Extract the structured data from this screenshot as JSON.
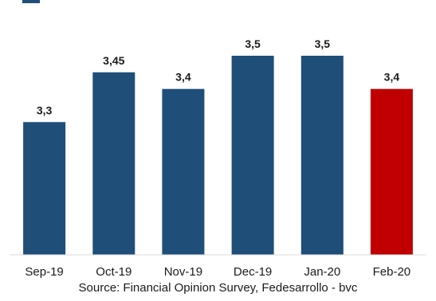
{
  "chart_data": {
    "type": "bar",
    "categories": [
      "Sep-19",
      "Oct-19",
      "Nov-19",
      "Dec-19",
      "Jan-20",
      "Feb-20"
    ],
    "values": [
      3.3,
      3.45,
      3.4,
      3.5,
      3.5,
      3.4
    ],
    "data_labels": [
      "3,3",
      "3,45",
      "3,4",
      "3,5",
      "3,5",
      "3,4"
    ],
    "colors": [
      "#1f4e79",
      "#1f4e79",
      "#1f4e79",
      "#1f4e79",
      "#1f4e79",
      "#c00000"
    ],
    "ylim": [
      2.9,
      3.5
    ],
    "grid": false,
    "legend": "none",
    "title": "",
    "xlabel": "",
    "ylabel": ""
  },
  "source_text": "Source: Financial Opinion Survey, Fedesarrollo - bvc"
}
